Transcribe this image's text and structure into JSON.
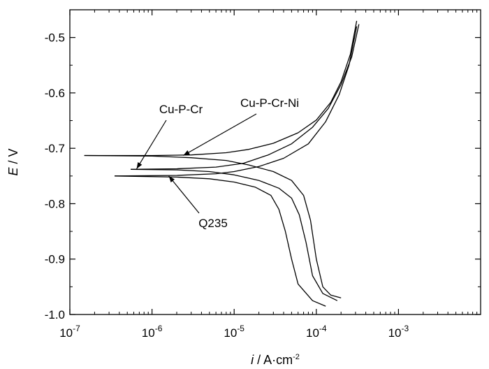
{
  "chart_data": {
    "type": "line",
    "xlabel": {
      "italic": "i",
      "rest": " / A·cm",
      "sup": "-2"
    },
    "ylabel": {
      "italic": "E",
      "rest": " / V"
    },
    "x_scale": "log",
    "xlim": [
      1e-07,
      0.01
    ],
    "ylim": [
      -1.0,
      -0.45
    ],
    "grid": false,
    "x_ticks": [
      {
        "value": 1e-07,
        "base": "10",
        "exp": "-7"
      },
      {
        "value": 1e-06,
        "base": "10",
        "exp": "-6"
      },
      {
        "value": 1e-05,
        "base": "10",
        "exp": "-5"
      },
      {
        "value": 0.0001,
        "base": "10",
        "exp": "-4"
      },
      {
        "value": 0.001,
        "base": "10",
        "exp": "-3"
      }
    ],
    "y_ticks": [
      {
        "value": -1.0,
        "label": "-1.0"
      },
      {
        "value": -0.9,
        "label": "-0.9"
      },
      {
        "value": -0.8,
        "label": "-0.8"
      },
      {
        "value": -0.7,
        "label": "-0.7"
      },
      {
        "value": -0.6,
        "label": "-0.6"
      },
      {
        "value": -0.5,
        "label": "-0.5"
      }
    ],
    "series": [
      {
        "name": "Cu-P-Cr-Ni",
        "anodic": [
          [
            1.5e-07,
            -0.713
          ],
          [
            1e-06,
            -0.713
          ],
          [
            3e-06,
            -0.712
          ],
          [
            8e-06,
            -0.708
          ],
          [
            1.5e-05,
            -0.702
          ],
          [
            3e-05,
            -0.691
          ],
          [
            6e-05,
            -0.672
          ],
          [
            0.0001,
            -0.649
          ],
          [
            0.00015,
            -0.617
          ],
          [
            0.0002,
            -0.58
          ],
          [
            0.00026,
            -0.53
          ],
          [
            0.00031,
            -0.47
          ]
        ],
        "cathodic": [
          [
            1.5e-07,
            -0.713
          ],
          [
            1e-06,
            -0.714
          ],
          [
            3e-06,
            -0.717
          ],
          [
            8e-06,
            -0.722
          ],
          [
            1.5e-05,
            -0.73
          ],
          [
            3e-05,
            -0.742
          ],
          [
            5e-05,
            -0.758
          ],
          [
            7e-05,
            -0.785
          ],
          [
            8.5e-05,
            -0.83
          ],
          [
            0.0001,
            -0.9
          ],
          [
            0.00012,
            -0.95
          ],
          [
            0.00015,
            -0.965
          ],
          [
            0.0002,
            -0.97
          ]
        ]
      },
      {
        "name": "Cu-P-Cr",
        "anodic": [
          [
            5.5e-07,
            -0.738
          ],
          [
            2e-06,
            -0.737
          ],
          [
            6e-06,
            -0.734
          ],
          [
            1.3e-05,
            -0.727
          ],
          [
            2.6e-05,
            -0.712
          ],
          [
            5e-05,
            -0.692
          ],
          [
            9e-05,
            -0.662
          ],
          [
            0.00014,
            -0.628
          ],
          [
            0.0002,
            -0.585
          ],
          [
            0.00027,
            -0.535
          ],
          [
            0.00033,
            -0.476
          ]
        ],
        "cathodic": [
          [
            5.5e-07,
            -0.738
          ],
          [
            2e-06,
            -0.739
          ],
          [
            5e-06,
            -0.742
          ],
          [
            1e-05,
            -0.748
          ],
          [
            2e-05,
            -0.758
          ],
          [
            3.5e-05,
            -0.772
          ],
          [
            5e-05,
            -0.79
          ],
          [
            6.2e-05,
            -0.82
          ],
          [
            7.5e-05,
            -0.87
          ],
          [
            9e-05,
            -0.93
          ],
          [
            0.00012,
            -0.962
          ],
          [
            0.00018,
            -0.975
          ]
        ]
      },
      {
        "name": "Q235",
        "anodic": [
          [
            3.5e-07,
            -0.75
          ],
          [
            2e-06,
            -0.749
          ],
          [
            6e-06,
            -0.746
          ],
          [
            1e-05,
            -0.742
          ],
          [
            2e-05,
            -0.733
          ],
          [
            4e-05,
            -0.718
          ],
          [
            8e-05,
            -0.692
          ],
          [
            0.00013,
            -0.652
          ],
          [
            0.00019,
            -0.603
          ],
          [
            0.00025,
            -0.55
          ],
          [
            0.00031,
            -0.48
          ]
        ],
        "cathodic": [
          [
            3.5e-07,
            -0.75
          ],
          [
            2e-06,
            -0.752
          ],
          [
            5e-06,
            -0.755
          ],
          [
            1e-05,
            -0.761
          ],
          [
            1.8e-05,
            -0.77
          ],
          [
            2.8e-05,
            -0.785
          ],
          [
            3.5e-05,
            -0.81
          ],
          [
            4.2e-05,
            -0.85
          ],
          [
            5e-05,
            -0.9
          ],
          [
            6e-05,
            -0.945
          ],
          [
            9e-05,
            -0.975
          ],
          [
            0.00013,
            -0.985
          ]
        ]
      }
    ],
    "annotations": [
      {
        "text": "Cu-P-Cr-Ni",
        "arrow_to": [
          2.4e-06,
          -0.713
        ]
      },
      {
        "text": "Cu-P-Cr",
        "arrow_to": [
          6.5e-07,
          -0.737
        ]
      },
      {
        "text": "Q235",
        "arrow_to": [
          1.6e-06,
          -0.75
        ]
      }
    ]
  }
}
